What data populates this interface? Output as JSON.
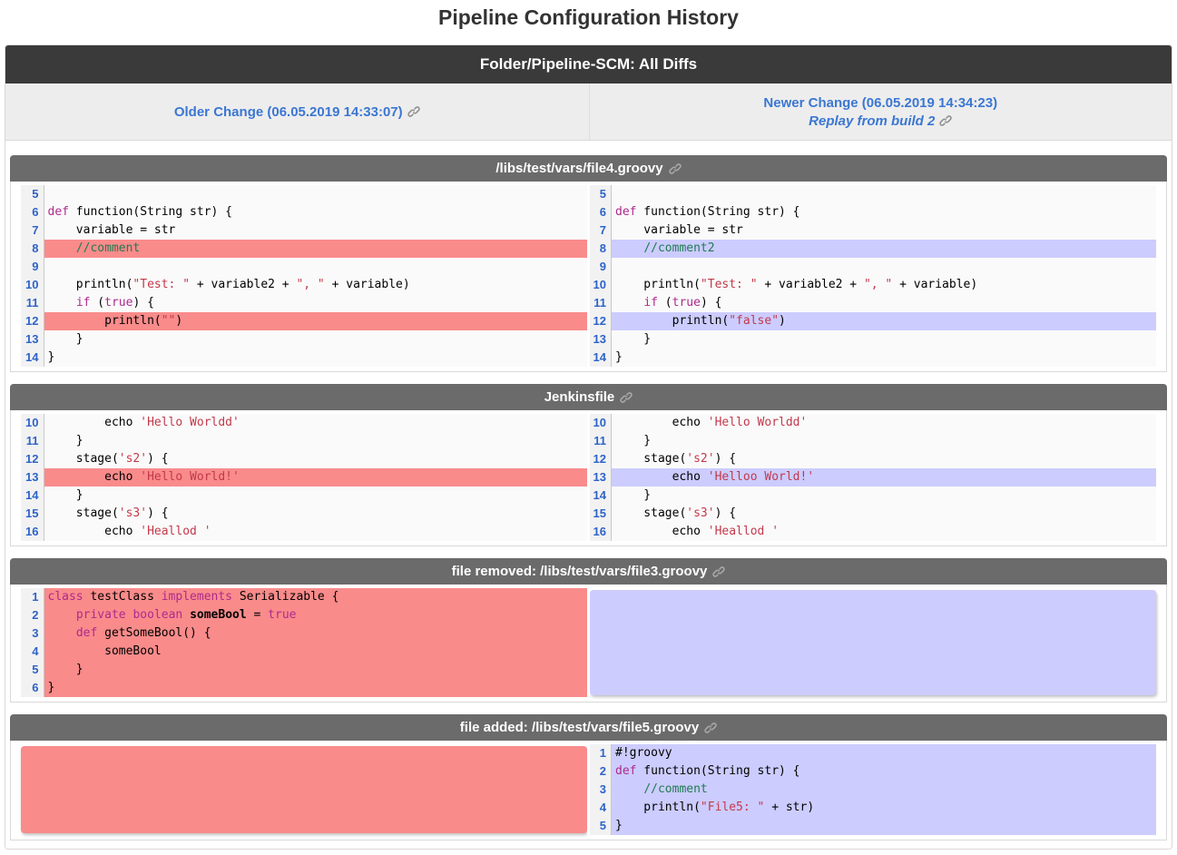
{
  "page": {
    "title": "Pipeline Configuration History"
  },
  "header": {
    "title": "Folder/Pipeline-SCM: All Diffs",
    "older": {
      "label": "Older Change (06.05.2019 14:33:07)"
    },
    "newer": {
      "label": "Newer Change (06.05.2019 14:34:23)",
      "replay": "Replay from build 2"
    }
  },
  "colors": {
    "removed_bg": "#f98b8b",
    "added_bg": "#ccccff",
    "keyword": "#ad2a8c",
    "string": "#c3394b",
    "comment": "#207a52",
    "line_number": "#2d63c8",
    "link": "#3b77d2",
    "header_bar": "#3a3a3a",
    "section_bar": "#6b6b6b"
  },
  "icons": {
    "link": "link-icon"
  },
  "sections": [
    {
      "title": "/libs/test/vars/file4.groovy",
      "left": {
        "lines": [
          {
            "n": "5",
            "h": "",
            "s": []
          },
          {
            "n": "6",
            "h": "",
            "s": [
              [
                "def",
                "k"
              ],
              [
                " function(String str) {",
                "p"
              ]
            ]
          },
          {
            "n": "7",
            "h": "",
            "s": [
              [
                "    variable = str",
                "p"
              ]
            ]
          },
          {
            "n": "8",
            "h": "rem",
            "s": [
              [
                "    ",
                "p"
              ],
              [
                "//comment",
                "c"
              ]
            ]
          },
          {
            "n": "9",
            "h": "",
            "s": []
          },
          {
            "n": "10",
            "h": "",
            "s": [
              [
                "    println(",
                "p"
              ],
              [
                "\"Test: \"",
                "s"
              ],
              [
                " + variable2 + ",
                "p"
              ],
              [
                "\", \"",
                "s"
              ],
              [
                " + variable)",
                "p"
              ]
            ]
          },
          {
            "n": "11",
            "h": "",
            "s": [
              [
                "    ",
                "p"
              ],
              [
                "if",
                "k"
              ],
              [
                " (",
                "p"
              ],
              [
                "true",
                "k"
              ],
              [
                ") {",
                "p"
              ]
            ]
          },
          {
            "n": "12",
            "h": "rem",
            "s": [
              [
                "        println(",
                "p"
              ],
              [
                "\"\"",
                "s"
              ],
              [
                ")",
                "p"
              ]
            ]
          },
          {
            "n": "13",
            "h": "",
            "s": [
              [
                "    }",
                "p"
              ]
            ]
          },
          {
            "n": "14",
            "h": "",
            "s": [
              [
                "}",
                "p"
              ]
            ]
          }
        ]
      },
      "right": {
        "lines": [
          {
            "n": "5",
            "h": "",
            "s": []
          },
          {
            "n": "6",
            "h": "",
            "s": [
              [
                "def",
                "k"
              ],
              [
                " function(String str) {",
                "p"
              ]
            ]
          },
          {
            "n": "7",
            "h": "",
            "s": [
              [
                "    variable = str",
                "p"
              ]
            ]
          },
          {
            "n": "8",
            "h": "add",
            "s": [
              [
                "    ",
                "p"
              ],
              [
                "//comment2",
                "c"
              ]
            ]
          },
          {
            "n": "9",
            "h": "",
            "s": []
          },
          {
            "n": "10",
            "h": "",
            "s": [
              [
                "    println(",
                "p"
              ],
              [
                "\"Test: \"",
                "s"
              ],
              [
                " + variable2 + ",
                "p"
              ],
              [
                "\", \"",
                "s"
              ],
              [
                " + variable)",
                "p"
              ]
            ]
          },
          {
            "n": "11",
            "h": "",
            "s": [
              [
                "    ",
                "p"
              ],
              [
                "if",
                "k"
              ],
              [
                " (",
                "p"
              ],
              [
                "true",
                "k"
              ],
              [
                ") {",
                "p"
              ]
            ]
          },
          {
            "n": "12",
            "h": "add",
            "s": [
              [
                "        println(",
                "p"
              ],
              [
                "\"false\"",
                "s"
              ],
              [
                ")",
                "p"
              ]
            ]
          },
          {
            "n": "13",
            "h": "",
            "s": [
              [
                "    }",
                "p"
              ]
            ]
          },
          {
            "n": "14",
            "h": "",
            "s": [
              [
                "}",
                "p"
              ]
            ]
          }
        ]
      }
    },
    {
      "title": "Jenkinsfile",
      "left": {
        "lines": [
          {
            "n": "10",
            "h": "",
            "s": [
              [
                "        echo ",
                "p"
              ],
              [
                "'Hello Worldd'",
                "s"
              ]
            ]
          },
          {
            "n": "11",
            "h": "",
            "s": [
              [
                "    }",
                "p"
              ]
            ]
          },
          {
            "n": "12",
            "h": "",
            "s": [
              [
                "    stage(",
                "p"
              ],
              [
                "'s2'",
                "s"
              ],
              [
                ") {",
                "p"
              ]
            ]
          },
          {
            "n": "13",
            "h": "rem",
            "s": [
              [
                "        echo ",
                "p"
              ],
              [
                "'Hello World!'",
                "s"
              ]
            ]
          },
          {
            "n": "14",
            "h": "",
            "s": [
              [
                "    }",
                "p"
              ]
            ]
          },
          {
            "n": "15",
            "h": "",
            "s": [
              [
                "    stage(",
                "p"
              ],
              [
                "'s3'",
                "s"
              ],
              [
                ") {",
                "p"
              ]
            ]
          },
          {
            "n": "16",
            "h": "",
            "s": [
              [
                "        echo ",
                "p"
              ],
              [
                "'Heallod '",
                "s"
              ]
            ]
          }
        ]
      },
      "right": {
        "lines": [
          {
            "n": "10",
            "h": "",
            "s": [
              [
                "        echo ",
                "p"
              ],
              [
                "'Hello Worldd'",
                "s"
              ]
            ]
          },
          {
            "n": "11",
            "h": "",
            "s": [
              [
                "    }",
                "p"
              ]
            ]
          },
          {
            "n": "12",
            "h": "",
            "s": [
              [
                "    stage(",
                "p"
              ],
              [
                "'s2'",
                "s"
              ],
              [
                ") {",
                "p"
              ]
            ]
          },
          {
            "n": "13",
            "h": "add",
            "s": [
              [
                "        echo ",
                "p"
              ],
              [
                "'Helloo World!'",
                "s"
              ]
            ]
          },
          {
            "n": "14",
            "h": "",
            "s": [
              [
                "    }",
                "p"
              ]
            ]
          },
          {
            "n": "15",
            "h": "",
            "s": [
              [
                "    stage(",
                "p"
              ],
              [
                "'s3'",
                "s"
              ],
              [
                ") {",
                "p"
              ]
            ]
          },
          {
            "n": "16",
            "h": "",
            "s": [
              [
                "        echo ",
                "p"
              ],
              [
                "'Heallod '",
                "s"
              ]
            ]
          }
        ]
      }
    },
    {
      "title": "file removed: /libs/test/vars/file3.groovy",
      "left": {
        "lines": [
          {
            "n": "1",
            "h": "rem",
            "s": [
              [
                "class",
                "k"
              ],
              [
                " testClass ",
                "p"
              ],
              [
                "implements",
                "k"
              ],
              [
                " Serializable {",
                "p"
              ]
            ]
          },
          {
            "n": "2",
            "h": "rem",
            "s": [
              [
                "    ",
                "p"
              ],
              [
                "private",
                "k"
              ],
              [
                " ",
                "p"
              ],
              [
                "boolean",
                "k"
              ],
              [
                " ",
                "p"
              ],
              [
                "someBool",
                "b"
              ],
              [
                " = ",
                "p"
              ],
              [
                "true",
                "k"
              ]
            ]
          },
          {
            "n": "3",
            "h": "rem",
            "s": [
              [
                "    ",
                "p"
              ],
              [
                "def",
                "k"
              ],
              [
                " getSomeBool() {",
                "p"
              ]
            ]
          },
          {
            "n": "4",
            "h": "rem",
            "s": [
              [
                "        someBool",
                "p"
              ]
            ]
          },
          {
            "n": "5",
            "h": "rem",
            "s": [
              [
                "    }",
                "p"
              ]
            ]
          },
          {
            "n": "6",
            "h": "rem",
            "s": [
              [
                "}",
                "p"
              ]
            ]
          }
        ]
      },
      "right": {
        "block": "add"
      }
    },
    {
      "title": "file added: /libs/test/vars/file5.groovy",
      "left": {
        "block": "rem"
      },
      "right": {
        "lines": [
          {
            "n": "1",
            "h": "add",
            "s": [
              [
                "#!groovy",
                "p"
              ]
            ]
          },
          {
            "n": "2",
            "h": "add",
            "s": [
              [
                "def",
                "k"
              ],
              [
                " function(String str) {",
                "p"
              ]
            ]
          },
          {
            "n": "3",
            "h": "add",
            "s": [
              [
                "    ",
                "p"
              ],
              [
                "//comment",
                "c"
              ]
            ]
          },
          {
            "n": "4",
            "h": "add",
            "s": [
              [
                "    println(",
                "p"
              ],
              [
                "\"File5: \"",
                "s"
              ],
              [
                " + str)",
                "p"
              ]
            ]
          },
          {
            "n": "5",
            "h": "add",
            "s": [
              [
                "}",
                "p"
              ]
            ]
          }
        ]
      }
    }
  ]
}
